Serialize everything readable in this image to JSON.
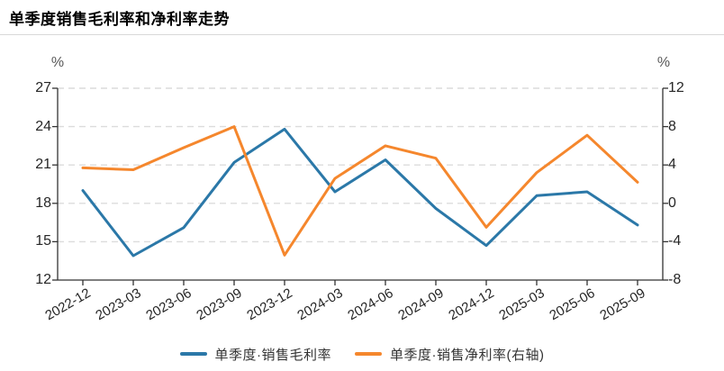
{
  "title": "单季度销售毛利率和净利率走势",
  "chart_data": {
    "type": "line",
    "categories": [
      "2022-12",
      "2023-03",
      "2023-06",
      "2023-09",
      "2023-12",
      "2024-03",
      "2024-06",
      "2024-09",
      "2024-12",
      "2025-03",
      "2025-06",
      "2025-09"
    ],
    "series": [
      {
        "name": "单季度·销售毛利率",
        "axis": "left",
        "color": "#2B78A8",
        "values": [
          19.0,
          13.9,
          16.1,
          21.2,
          23.8,
          18.9,
          21.4,
          17.6,
          14.7,
          18.6,
          18.9,
          16.3
        ]
      },
      {
        "name": "单季度·销售净利率(右轴)",
        "axis": "right",
        "color": "#F5872D",
        "values": [
          3.7,
          3.5,
          5.8,
          8.0,
          -5.4,
          2.6,
          6.0,
          4.7,
          -2.5,
          3.2,
          7.1,
          2.2
        ]
      }
    ],
    "left_axis": {
      "unit": "%",
      "min": 12,
      "max": 27,
      "ticks": [
        27,
        24,
        21,
        18,
        15,
        12
      ]
    },
    "right_axis": {
      "unit": "%",
      "min": -8,
      "max": 12,
      "ticks": [
        12,
        8,
        4,
        0,
        -4,
        -8
      ]
    },
    "grid": "horizontal-dashed",
    "legend_position": "bottom",
    "colors": {
      "grid": "#dcdcdc",
      "axis": "#333333",
      "tick_text": "#262626",
      "unit_text": "#595959"
    }
  }
}
